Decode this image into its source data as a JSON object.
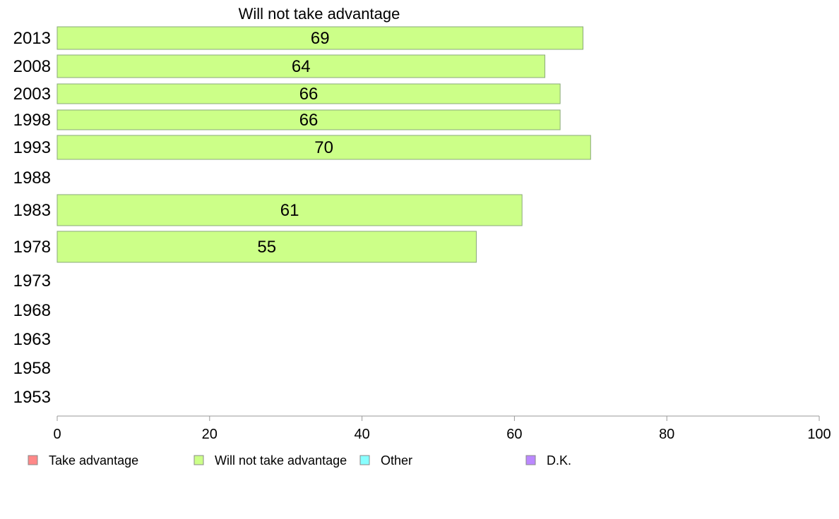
{
  "chart_data": {
    "type": "bar",
    "orientation": "horizontal",
    "title": "Will not take advantage",
    "categories": [
      "2013",
      "2008",
      "2003",
      "1998",
      "1993",
      "1988",
      "1983",
      "1978",
      "1973",
      "1968",
      "1963",
      "1958",
      "1953"
    ],
    "series": [
      {
        "name": "Will not take advantage",
        "color": "#ccff88",
        "values": [
          69,
          64,
          66,
          66,
          70,
          null,
          61,
          55,
          null,
          null,
          null,
          null,
          null
        ]
      }
    ],
    "xlim": [
      0,
      100
    ],
    "xticks": [
      0,
      20,
      40,
      60,
      80,
      100
    ],
    "grid": false,
    "legend": {
      "position": "bottom",
      "items": [
        {
          "label": "Take advantage",
          "color": "#ff8888"
        },
        {
          "label": "Will not take advantage",
          "color": "#ccff88"
        },
        {
          "label": "Other",
          "color": "#88ffff"
        },
        {
          "label": "D.K.",
          "color": "#bb88ff"
        }
      ]
    }
  }
}
